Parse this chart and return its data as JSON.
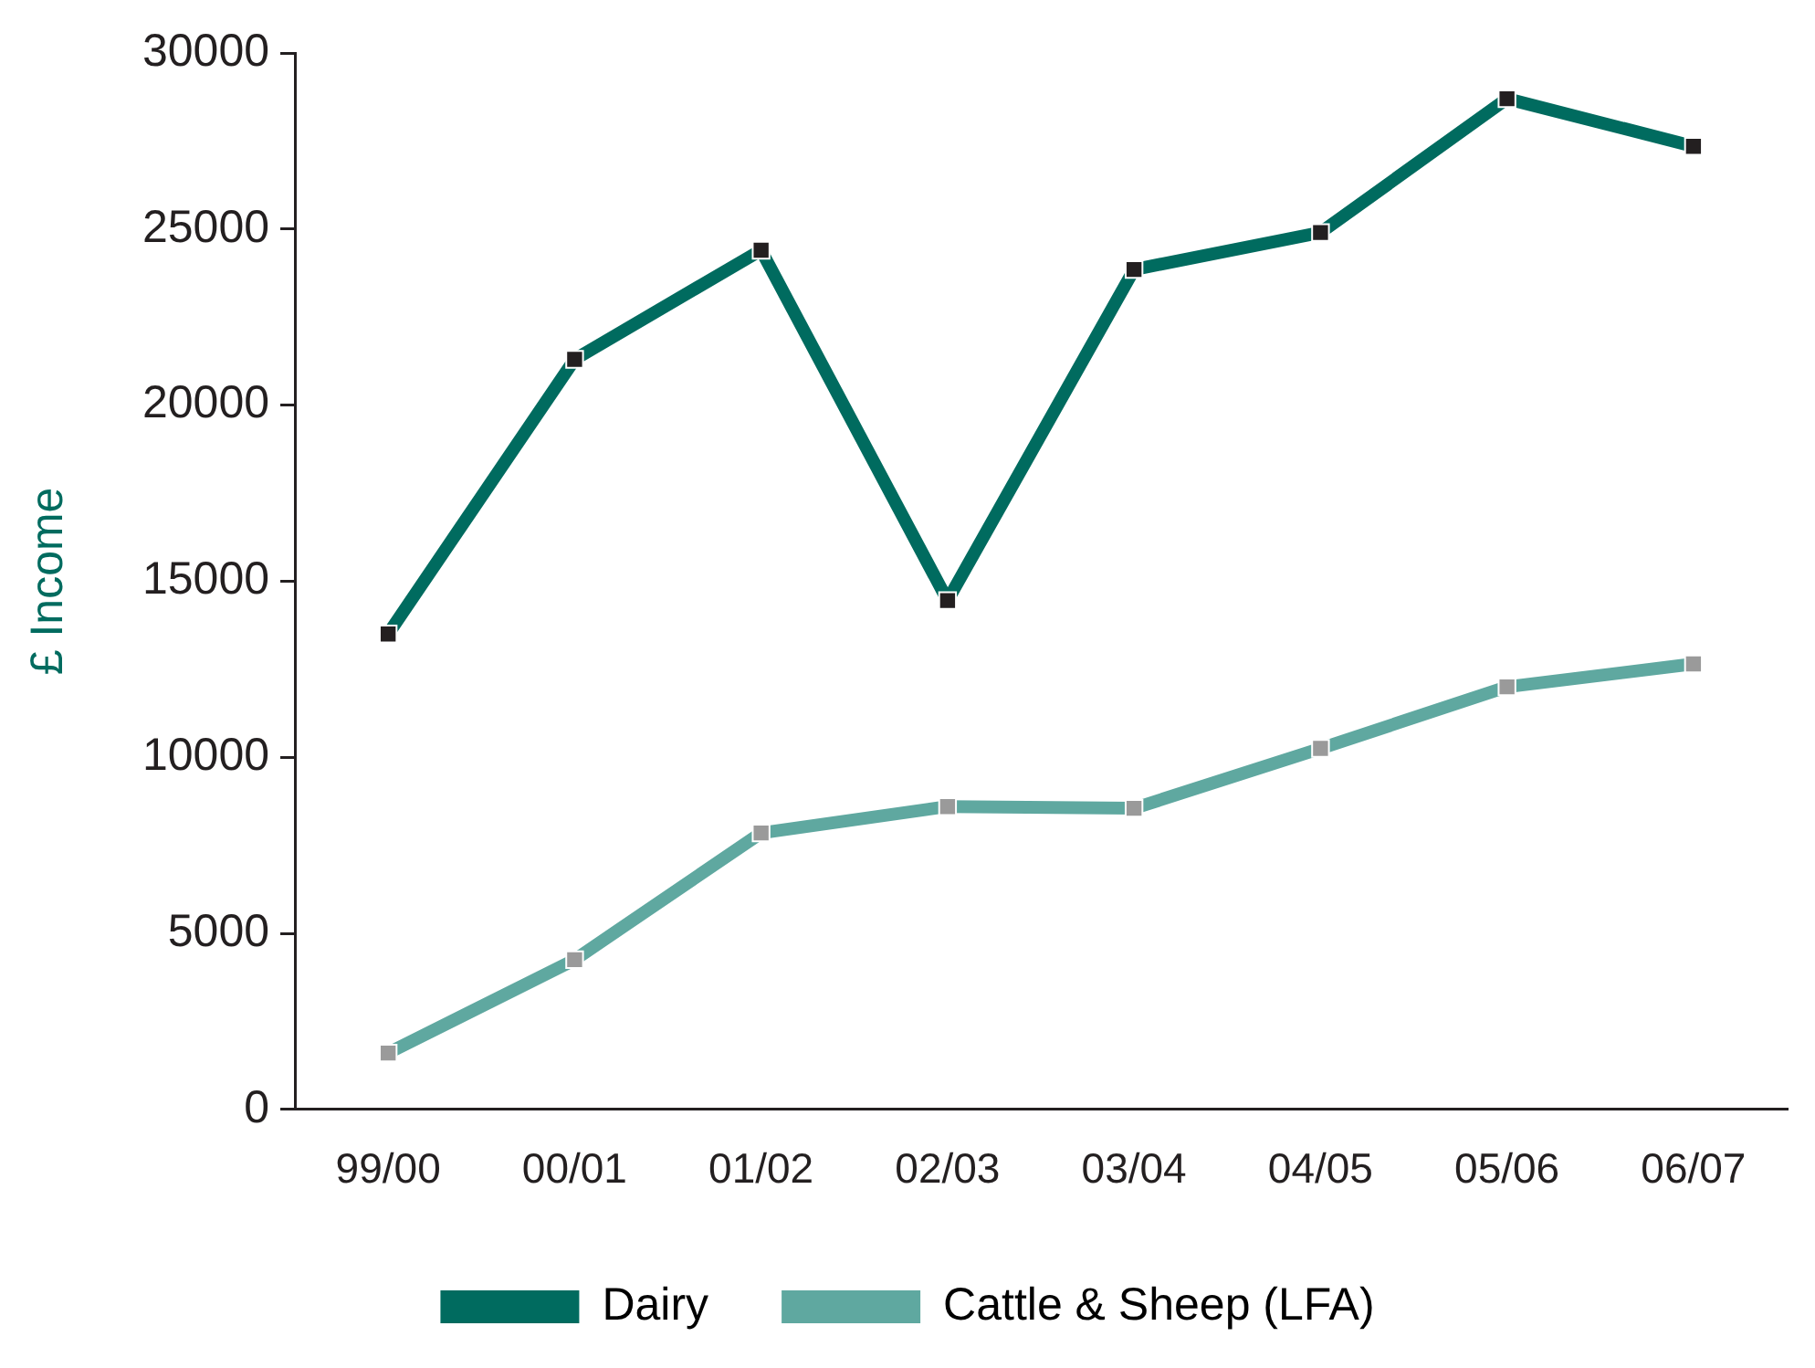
{
  "chart_data": {
    "type": "line",
    "ylabel": "£ Income",
    "categories": [
      "99/00",
      "00/01",
      "01/02",
      "02/03",
      "03/04",
      "04/05",
      "05/06",
      "06/07"
    ],
    "series": [
      {
        "name": "Dairy",
        "color": "#006b5f",
        "values": [
          13500,
          21300,
          24400,
          14450,
          23850,
          24900,
          28700,
          27350
        ]
      },
      {
        "name": "Cattle & Sheep (LFA)",
        "color": "#5fa8a0",
        "values": [
          1600,
          4250,
          7850,
          8600,
          8550,
          10250,
          12000,
          12650
        ]
      }
    ],
    "ylim": [
      0,
      30000
    ],
    "yticks": [
      0,
      5000,
      10000,
      15000,
      20000,
      25000,
      30000
    ],
    "grid": false,
    "legend": "bottom",
    "marker": "square",
    "line_style": "solid"
  }
}
